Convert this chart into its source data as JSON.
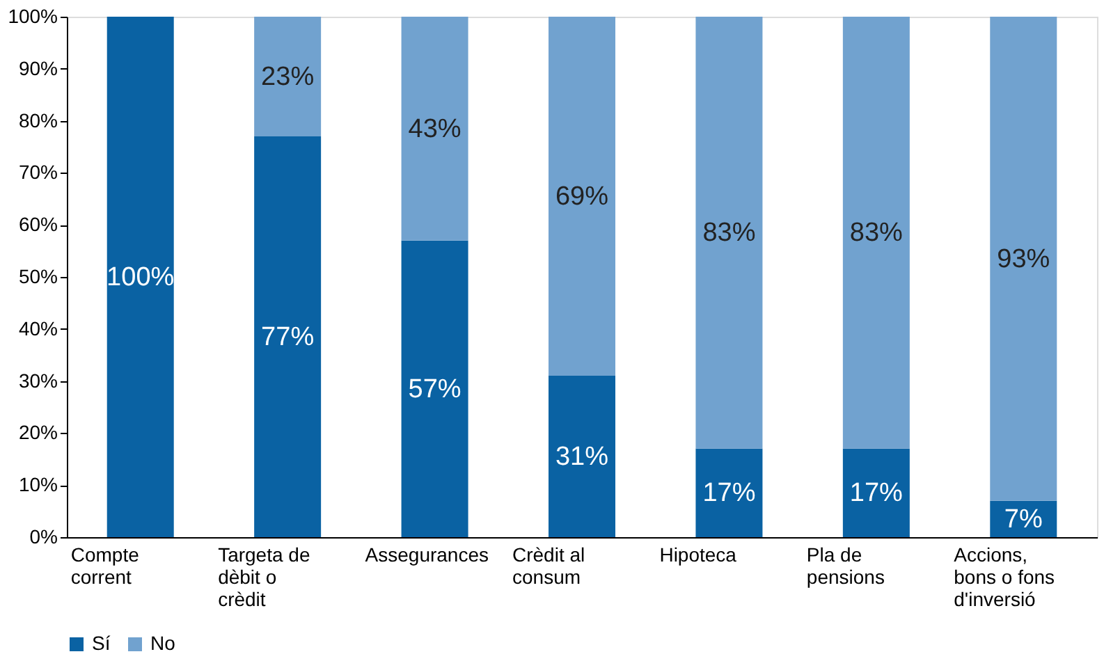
{
  "chart_data": {
    "type": "bar",
    "stacked": true,
    "categories": [
      "Compte corrent",
      "Targeta de dèbit o crèdit",
      "Assegurances",
      "Crèdit al consum",
      "Hipoteca",
      "Pla de pensions",
      "Accions, bons o fons d'inversió"
    ],
    "series": [
      {
        "name": "Sí",
        "color": "#0a62a3",
        "values": [
          100,
          77,
          57,
          31,
          17,
          17,
          7
        ],
        "value_labels": [
          "100%",
          "77%",
          "57%",
          "31%",
          "17%",
          "17%",
          "7%"
        ]
      },
      {
        "name": "No",
        "color": "#71a2cf",
        "values": [
          0,
          23,
          43,
          69,
          83,
          83,
          93
        ],
        "value_labels": [
          null,
          "23%",
          "43%",
          "69%",
          "83%",
          "83%",
          "93%"
        ]
      }
    ],
    "ylim": [
      0,
      100
    ],
    "yticks": [
      {
        "value": 0,
        "label": "0%"
      },
      {
        "value": 10,
        "label": "10%"
      },
      {
        "value": 20,
        "label": "20%"
      },
      {
        "value": 30,
        "label": "30%"
      },
      {
        "value": 40,
        "label": "40%"
      },
      {
        "value": 50,
        "label": "50%"
      },
      {
        "value": 60,
        "label": "60%"
      },
      {
        "value": 70,
        "label": "70%"
      },
      {
        "value": 80,
        "label": "80%"
      },
      {
        "value": 90,
        "label": "90%"
      },
      {
        "value": 100,
        "label": "100%"
      }
    ],
    "grid": false,
    "legend": "bottom"
  }
}
